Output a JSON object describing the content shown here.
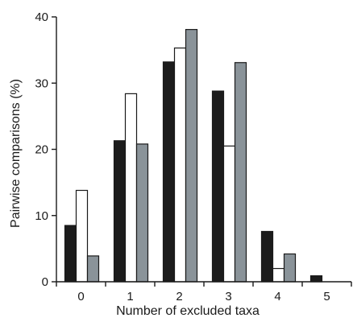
{
  "chart_data": {
    "type": "bar",
    "title": "",
    "xlabel": "Number of excluded taxa",
    "ylabel": "Pairwise comparisons (%)",
    "categories": [
      "0",
      "1",
      "2",
      "3",
      "4",
      "5"
    ],
    "ylim": [
      0,
      40
    ],
    "yticks": [
      "0",
      "10",
      "20",
      "30",
      "40"
    ],
    "grid": false,
    "legend": "none",
    "series": [
      {
        "values": [
          8.5,
          21.3,
          33.2,
          28.8,
          7.6,
          0.9
        ],
        "color": "#1c1c1c"
      },
      {
        "values": [
          13.8,
          28.4,
          35.3,
          20.5,
          2.0,
          0
        ],
        "color": "#ffffff"
      },
      {
        "values": [
          3.9,
          20.8,
          38.1,
          33.1,
          4.2,
          0
        ],
        "color": "#8a9399"
      }
    ]
  }
}
